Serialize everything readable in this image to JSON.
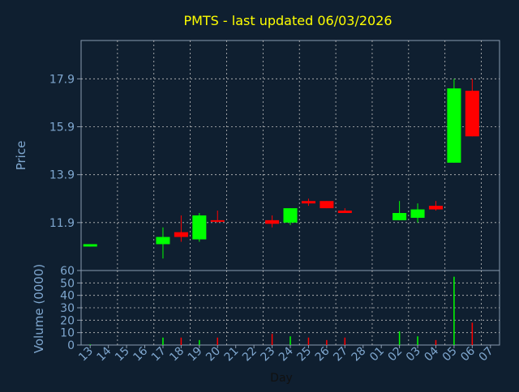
{
  "chart_data": [
    {
      "type": "candlestick",
      "title": "PMTS - last updated 06/03/2026",
      "xlabel": "",
      "ylabel": "Price",
      "ylim": [
        9.9,
        19.5
      ],
      "yticks": [
        11.9,
        13.9,
        15.9,
        17.9
      ],
      "grid": true,
      "colors": {
        "up": "#00ff00",
        "down": "#ff0000",
        "title": "#ffff00",
        "axis_text": "#7fa7cf",
        "grid": "#c0c0c0",
        "plot_bg": "#0f1f30"
      },
      "categories": [
        "13",
        "14",
        "15",
        "16",
        "17",
        "18",
        "19",
        "20",
        "21",
        "22",
        "23",
        "24",
        "25",
        "26",
        "27",
        "28",
        "01",
        "02",
        "03",
        "04",
        "05",
        "06",
        "07"
      ],
      "candles": [
        {
          "x": "13",
          "open": 10.9,
          "close": 11.0,
          "high": 11.0,
          "low": 10.9,
          "dir": "up"
        },
        {
          "x": "17",
          "open": 11.0,
          "close": 11.3,
          "high": 11.7,
          "low": 10.4,
          "dir": "up"
        },
        {
          "x": "18",
          "open": 11.5,
          "close": 11.3,
          "high": 12.2,
          "low": 11.1,
          "dir": "down"
        },
        {
          "x": "19",
          "open": 11.2,
          "close": 12.2,
          "high": 12.3,
          "low": 11.1,
          "dir": "up"
        },
        {
          "x": "20",
          "open": 12.0,
          "close": 11.95,
          "high": 12.4,
          "low": 11.9,
          "dir": "down"
        },
        {
          "x": "23",
          "open": 12.0,
          "close": 11.85,
          "high": 12.2,
          "low": 11.7,
          "dir": "down"
        },
        {
          "x": "24",
          "open": 11.9,
          "close": 12.5,
          "high": 12.5,
          "low": 11.8,
          "dir": "up"
        },
        {
          "x": "25",
          "open": 12.8,
          "close": 12.7,
          "high": 12.9,
          "low": 12.6,
          "dir": "down"
        },
        {
          "x": "26",
          "open": 12.8,
          "close": 12.5,
          "high": 12.8,
          "low": 12.5,
          "dir": "down"
        },
        {
          "x": "27",
          "open": 12.4,
          "close": 12.3,
          "high": 12.5,
          "low": 12.3,
          "dir": "down"
        },
        {
          "x": "02",
          "open": 12.0,
          "close": 12.3,
          "high": 12.8,
          "low": 12.0,
          "dir": "up"
        },
        {
          "x": "03",
          "open": 12.1,
          "close": 12.45,
          "high": 12.7,
          "low": 11.9,
          "dir": "up"
        },
        {
          "x": "04",
          "open": 12.6,
          "close": 12.45,
          "high": 12.8,
          "low": 12.4,
          "dir": "down"
        },
        {
          "x": "05",
          "open": 14.4,
          "close": 17.5,
          "high": 17.9,
          "low": 14.4,
          "dir": "up"
        },
        {
          "x": "06",
          "open": 17.4,
          "close": 15.5,
          "high": 17.9,
          "low": 15.5,
          "dir": "down"
        }
      ]
    },
    {
      "type": "bar",
      "title": "",
      "xlabel": "Day",
      "ylabel": "Volume (0000)",
      "ylim": [
        0,
        60
      ],
      "yticks": [
        0,
        10,
        20,
        30,
        40,
        50,
        60
      ],
      "grid": true,
      "categories": [
        "13",
        "14",
        "15",
        "16",
        "17",
        "18",
        "19",
        "20",
        "21",
        "22",
        "23",
        "24",
        "25",
        "26",
        "27",
        "28",
        "01",
        "02",
        "03",
        "04",
        "05",
        "06",
        "07"
      ],
      "bars": [
        {
          "x": "13",
          "value": 0.5,
          "dir": "up"
        },
        {
          "x": "17",
          "value": 6,
          "dir": "up"
        },
        {
          "x": "18",
          "value": 6,
          "dir": "down"
        },
        {
          "x": "19",
          "value": 4,
          "dir": "up"
        },
        {
          "x": "20",
          "value": 6,
          "dir": "down"
        },
        {
          "x": "23",
          "value": 9,
          "dir": "down"
        },
        {
          "x": "24",
          "value": 7,
          "dir": "up"
        },
        {
          "x": "25",
          "value": 6,
          "dir": "down"
        },
        {
          "x": "26",
          "value": 4,
          "dir": "down"
        },
        {
          "x": "27",
          "value": 6,
          "dir": "down"
        },
        {
          "x": "02",
          "value": 11,
          "dir": "up"
        },
        {
          "x": "03",
          "value": 7,
          "dir": "up"
        },
        {
          "x": "04",
          "value": 4,
          "dir": "down"
        },
        {
          "x": "05",
          "value": 55,
          "dir": "up"
        },
        {
          "x": "06",
          "value": 18,
          "dir": "down"
        }
      ]
    }
  ]
}
